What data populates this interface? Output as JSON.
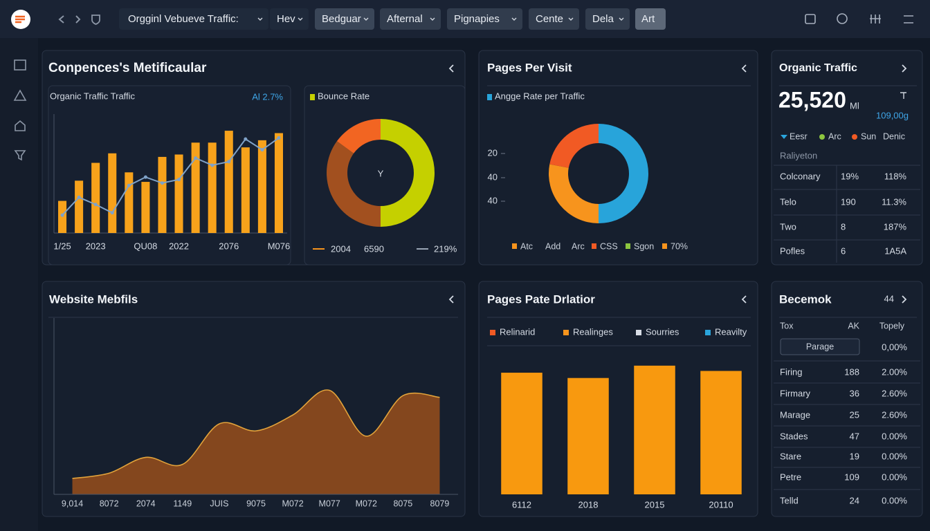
{
  "toolbar": {
    "tabs": [
      "Orgginl Vebueve Traffic:",
      "Hev",
      "Bedguar",
      "Afternal",
      "Pignapies",
      "Cente",
      "Dela",
      "Art"
    ]
  },
  "panels": {
    "overview": {
      "title": "Conpences's Metificaular",
      "traffic_card": {
        "title": "Organic Traffic Traffic",
        "badge": "Al 2.7%"
      },
      "bounce_card": {
        "title": "Bounce Rate",
        "center": "Y",
        "legend": [
          "2004",
          "6590",
          "219%"
        ]
      }
    },
    "pages": {
      "title": "Pages Per Visit",
      "subtitle": "Angge Rate per Traffic",
      "axis_labels": [
        "20",
        "40",
        "40"
      ],
      "legend": [
        "Atc",
        "Add",
        "Arc",
        "CSS",
        "Sgon",
        "70%"
      ],
      "legend_colors": [
        "#f7941d",
        null,
        null,
        "#f15a24",
        "#8dc63f",
        "#f7941d"
      ]
    },
    "organic": {
      "title": "Organic Traffic",
      "value": "25,520",
      "unit": "Ml",
      "sub": "109,00g",
      "legend": [
        "Eesr",
        "Arc",
        "Sun",
        "Denic"
      ],
      "legend_colors": [
        "#2aa5dc",
        "#8dc63f",
        "#f15a24",
        null
      ],
      "table_title": "Raliyeton",
      "rows": [
        [
          "Colconary",
          "19%",
          "118%"
        ],
        [
          "Telo",
          "190",
          "11.3%"
        ],
        [
          "Two",
          "8",
          "187%"
        ],
        [
          "Pofles",
          "6",
          "1A5A"
        ]
      ]
    },
    "website": {
      "title": "Website Mebfils"
    },
    "pages_rate": {
      "title": "Pages Pate Drlatior",
      "legend": [
        "Relinarid",
        "Realinges",
        "Sourries",
        "Reavilty"
      ],
      "legend_colors": [
        "#f15a24",
        "#f7941d",
        "#d8dde6",
        "#2aa5dc"
      ]
    },
    "becemok": {
      "title": "Becemok",
      "count": "44",
      "header": [
        "Tox",
        "AK",
        "Topely"
      ],
      "button": "Parage",
      "button_value": "0,00%",
      "rows": [
        [
          "Firing",
          "188",
          "2.00%"
        ],
        [
          "Firmary",
          "36",
          "2.60%"
        ],
        [
          "Marage",
          "25",
          "2.60%"
        ],
        [
          "Stades",
          "47",
          "0.00%"
        ],
        [
          "Stare",
          "19",
          "0.00%"
        ],
        [
          "Petre",
          "109",
          "0.00%"
        ],
        [
          "Telld",
          "24",
          "0.00%"
        ]
      ]
    }
  },
  "chart_data": [
    {
      "type": "bar",
      "categories": [
        "1/25",
        null,
        "2023",
        null,
        null,
        "QU08",
        null,
        "2022",
        null,
        null,
        "2076",
        null,
        null,
        "M076"
      ],
      "ylim": [
        0,
        100
      ],
      "series": [
        {
          "color": "#f7a21b",
          "values": [
            27,
            44,
            59,
            67,
            51,
            43,
            64,
            66,
            76,
            76,
            86,
            72,
            78,
            84
          ]
        },
        {
          "color": "#7fa2c8",
          "values": [
            15,
            30,
            24,
            17,
            40,
            47,
            42,
            45,
            63,
            57,
            60,
            79,
            70,
            80
          ]
        }
      ]
    },
    {
      "type": "pie",
      "values": [
        50,
        35,
        15
      ],
      "colors": [
        "#c5d000",
        "#a2501f",
        "#f26522"
      ]
    },
    {
      "type": "pie",
      "values": [
        50,
        28,
        22
      ],
      "colors": [
        "#28a4da",
        "#f7941d",
        "#f15a24"
      ]
    },
    {
      "type": "area",
      "categories": [
        "9,014",
        "8072",
        "2074",
        "1149",
        "JUIS",
        "9075",
        "M072",
        "M077",
        "M072",
        "8075",
        "8079"
      ],
      "values": [
        9,
        12,
        21,
        17,
        40,
        36,
        45,
        59,
        33,
        56,
        55
      ],
      "ylim": [
        0,
        100
      ],
      "color": "#8a4a1e",
      "line_color": "#e2a33b"
    },
    {
      "type": "bar",
      "categories": [
        "6112",
        "2018",
        "2015",
        "20110"
      ],
      "values": [
        69,
        66,
        73,
        70
      ],
      "ylim": [
        0,
        100
      ],
      "color": "#f8990f"
    }
  ]
}
